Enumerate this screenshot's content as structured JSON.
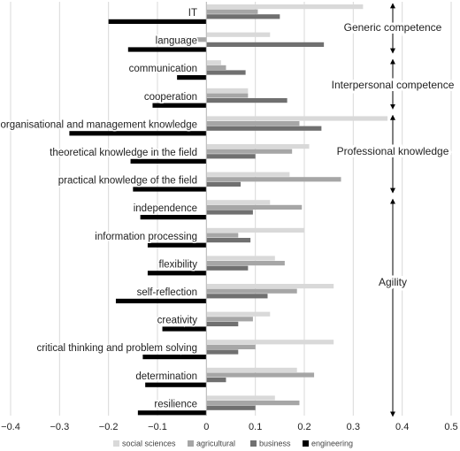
{
  "chart_data": {
    "type": "bar",
    "orientation": "horizontal",
    "categories": [
      "IT",
      "language",
      "communication",
      "cooperation",
      "organisational and management knowledge",
      "theoretical knowledge in the field",
      "practical knowledge of the field",
      "independence",
      "information processing",
      "flexibility",
      "self-reflection",
      "creativity",
      "critical thinking and problem solving",
      "determination",
      "resilience"
    ],
    "series": [
      {
        "name": "social sciences",
        "color": "#d9d9d9",
        "values": [
          0.32,
          0.13,
          0.03,
          0.085,
          0.37,
          0.21,
          0.17,
          0.13,
          0.2,
          0.14,
          0.26,
          0.13,
          0.26,
          0.185,
          0.14
        ]
      },
      {
        "name": "agricultural",
        "color": "#a6a6a6",
        "values": [
          0.105,
          -0.05,
          0.04,
          0.085,
          0.19,
          0.175,
          0.275,
          0.195,
          0.065,
          0.16,
          0.185,
          0.095,
          0.1,
          0.22,
          0.19
        ]
      },
      {
        "name": "business",
        "color": "#707070",
        "values": [
          0.15,
          0.24,
          0.08,
          0.165,
          0.235,
          0.1,
          0.07,
          0.095,
          0.09,
          0.085,
          0.125,
          0.065,
          0.065,
          0.04,
          0.1
        ]
      },
      {
        "name": "engineering",
        "color": "#000000",
        "values": [
          -0.2,
          -0.16,
          -0.06,
          -0.11,
          -0.28,
          -0.155,
          -0.15,
          -0.135,
          -0.12,
          -0.12,
          -0.185,
          -0.09,
          -0.13,
          -0.125,
          -0.14
        ]
      }
    ],
    "xlim": [
      -0.4,
      0.5
    ],
    "xticks": [
      {
        "value": -0.4,
        "label": "−0.4"
      },
      {
        "value": -0.3,
        "label": "−0.3"
      },
      {
        "value": -0.2,
        "label": "−0.2"
      },
      {
        "value": -0.1,
        "label": "−0.1"
      },
      0,
      0.1,
      0.2,
      0.3,
      0.4,
      0.5
    ],
    "grid": true,
    "legend": "bottom",
    "annotations": [
      "Generic competence",
      "Interpersonal competence",
      "Professional knowledge",
      "Agility"
    ]
  }
}
